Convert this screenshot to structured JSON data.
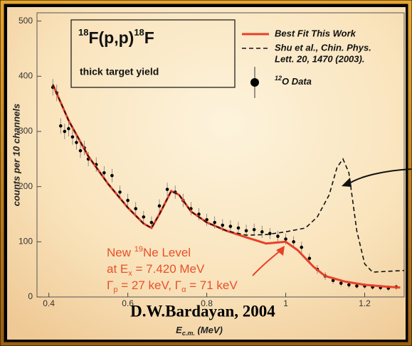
{
  "chart_data": {
    "type": "scatter",
    "box_title": [
      "18",
      "F(p,p)",
      "18",
      "F"
    ],
    "box_subtitle": "thick target yield",
    "xlabel": [
      "E",
      "c.m.",
      " (MeV)"
    ],
    "ylabel": "counts per 10 channels",
    "credit": "D.W.Bardayan, 2004",
    "annotation_lines": [
      [
        "New ",
        "19",
        "Ne Level"
      ],
      [
        "at E",
        "x",
        " = 7.420 MeV"
      ],
      [
        "Γ",
        "p",
        " = 27 keV, Γ",
        "α",
        " = 71 keV"
      ]
    ],
    "annotation_color": "#e8502a",
    "xlim": [
      0.37,
      1.3
    ],
    "xticks": [
      0.4,
      0.6,
      0.8,
      1.0,
      1.2
    ],
    "ylim": [
      0,
      515
    ],
    "yticks": [
      0,
      100,
      200,
      300,
      400,
      500
    ],
    "lines": [
      {
        "name": "Best Fit This Work",
        "color": "#e8402a",
        "dash": false,
        "x": [
          0.41,
          0.45,
          0.5,
          0.55,
          0.6,
          0.64,
          0.66,
          0.68,
          0.71,
          0.73,
          0.76,
          0.8,
          0.85,
          0.9,
          0.95,
          1.0,
          1.03,
          1.07,
          1.1,
          1.15,
          1.2,
          1.25,
          1.29
        ],
        "values": [
          385,
          320,
          255,
          205,
          162,
          133,
          125,
          150,
          192,
          185,
          155,
          135,
          120,
          108,
          97,
          100,
          85,
          55,
          38,
          28,
          22,
          19,
          17
        ]
      },
      {
        "name": "Shu et al., Chin. Phys. Lett. 20, 1470 (2003).",
        "name_lines": [
          "Shu et al., Chin. Phys.",
          "Lett. 20, 1470 (2003)."
        ],
        "color": "#111111",
        "dash": true,
        "x": [
          0.41,
          0.45,
          0.5,
          0.55,
          0.6,
          0.64,
          0.66,
          0.68,
          0.71,
          0.73,
          0.76,
          0.8,
          0.85,
          0.9,
          0.95,
          1.0,
          1.05,
          1.08,
          1.11,
          1.13,
          1.145,
          1.16,
          1.18,
          1.2,
          1.22,
          1.3
        ],
        "values": [
          385,
          320,
          255,
          205,
          162,
          133,
          125,
          150,
          192,
          185,
          155,
          135,
          120,
          112,
          113,
          118,
          125,
          145,
          185,
          235,
          250,
          225,
          120,
          60,
          45,
          48
        ]
      }
    ],
    "points": {
      "name_sup": "12",
      "name": "O Data",
      "color": "#000000",
      "x": [
        0.41,
        0.42,
        0.43,
        0.44,
        0.45,
        0.46,
        0.47,
        0.48,
        0.49,
        0.5,
        0.52,
        0.54,
        0.56,
        0.58,
        0.6,
        0.62,
        0.64,
        0.66,
        0.68,
        0.7,
        0.72,
        0.74,
        0.76,
        0.78,
        0.8,
        0.82,
        0.84,
        0.86,
        0.88,
        0.9,
        0.92,
        0.94,
        0.96,
        0.98,
        1.0,
        1.02,
        1.04,
        1.06,
        1.08,
        1.1,
        1.12,
        1.14,
        1.16,
        1.18,
        1.2,
        1.22,
        1.24,
        1.26,
        1.28
      ],
      "values": [
        380,
        370,
        310,
        300,
        305,
        290,
        280,
        265,
        270,
        250,
        240,
        225,
        220,
        190,
        175,
        160,
        145,
        135,
        165,
        195,
        190,
        175,
        160,
        150,
        140,
        135,
        130,
        128,
        125,
        120,
        122,
        118,
        115,
        110,
        105,
        100,
        90,
        70,
        50,
        38,
        30,
        25,
        22,
        20,
        20,
        18,
        17,
        16,
        18
      ],
      "errors": [
        15,
        15,
        14,
        14,
        14,
        14,
        13,
        13,
        13,
        13,
        13,
        12,
        12,
        12,
        12,
        12,
        11,
        11,
        12,
        12,
        12,
        12,
        12,
        11,
        11,
        11,
        11,
        11,
        11,
        11,
        11,
        11,
        10,
        10,
        10,
        10,
        10,
        9,
        8,
        7,
        6,
        6,
        6,
        5,
        5,
        5,
        5,
        5,
        5
      ]
    }
  }
}
